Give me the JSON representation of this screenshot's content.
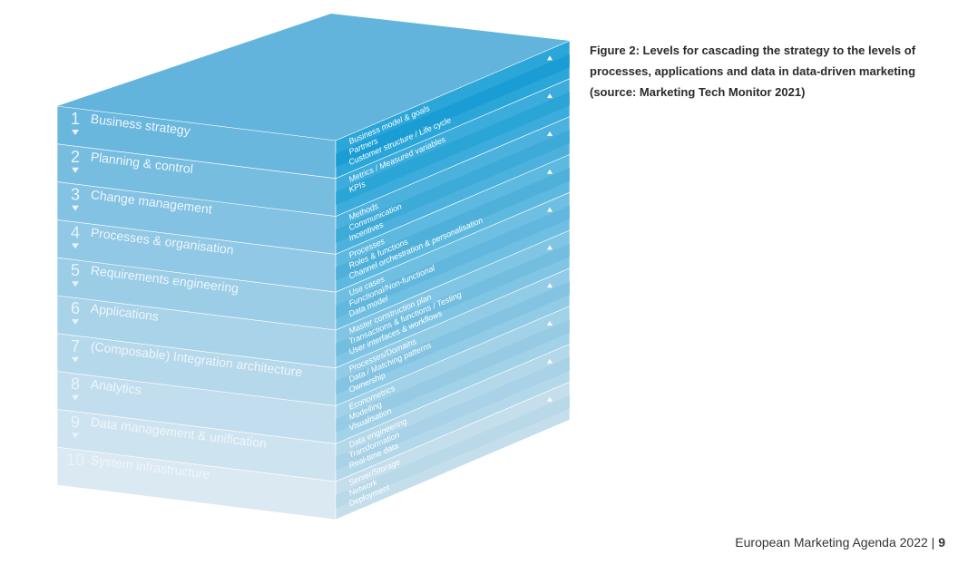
{
  "figure": {
    "levels": [
      {
        "number": "1",
        "label": "Business strategy",
        "items": [
          "Business model & goals",
          "Partners",
          "Customer structure / Life cycle"
        ]
      },
      {
        "number": "2",
        "label": "Planning & control",
        "items": [
          "Metrics / Measured variables",
          "KPIs"
        ]
      },
      {
        "number": "3",
        "label": "Change management",
        "items": [
          "Methods",
          "Communication",
          "Incentives"
        ]
      },
      {
        "number": "4",
        "label": "Processes & organisation",
        "items": [
          "Processes",
          "Roles & functions",
          "Channel orchestration & personalisation"
        ]
      },
      {
        "number": "5",
        "label": "Requirements engineering",
        "items": [
          "Use cases",
          "Functional/Non-functional",
          "Data model"
        ]
      },
      {
        "number": "6",
        "label": "Applications",
        "items": [
          "Master construction plan",
          "Transactions & functions / Testing",
          "User interfaces & workflows"
        ]
      },
      {
        "number": "7",
        "label": "(Composable) Integration architecture",
        "items": [
          "Processes/Domains",
          "Data / Matching patterns",
          "Ownership"
        ]
      },
      {
        "number": "8",
        "label": "Analytics",
        "items": [
          "Econometrics",
          "Modelling",
          "Visualisation"
        ]
      },
      {
        "number": "9",
        "label": "Data management & unification",
        "items": [
          "Data engineering",
          "Transformation",
          "Real-time data"
        ]
      },
      {
        "number": "10",
        "label": "System infrastructure",
        "items": [
          "Server/Storage",
          "Network",
          "Deployment"
        ]
      }
    ]
  },
  "caption": "Figure 2: Levels for cascading the strategy to the levels of processes, applications and data in data-driven marketing (source: Marketing Tech Monitor 2021)",
  "footer": {
    "text": "European Marketing Agenda 2022",
    "page": "9"
  }
}
